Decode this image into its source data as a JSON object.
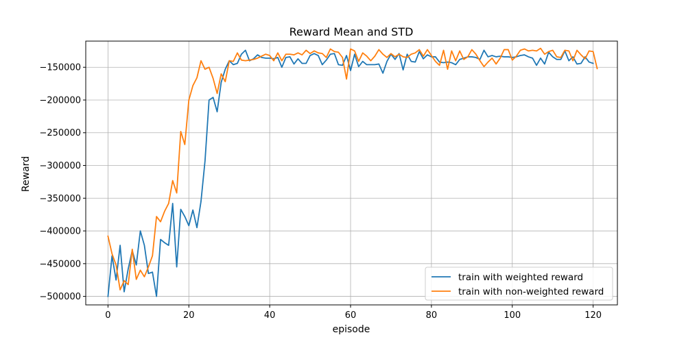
{
  "chart_data": {
    "type": "line",
    "title": "Reward Mean and STD",
    "xlabel": "episode",
    "ylabel": "Reward",
    "xlim": [
      -5.5,
      126
    ],
    "ylim": [
      -513000,
      -110000
    ],
    "xticks": [
      0,
      20,
      40,
      60,
      80,
      100,
      120
    ],
    "xtick_labels": [
      "0",
      "20",
      "40",
      "60",
      "80",
      "100",
      "120"
    ],
    "yticks": [
      -500000,
      -450000,
      -400000,
      -350000,
      -300000,
      -250000,
      -200000,
      -150000
    ],
    "ytick_labels": [
      "−500000",
      "−450000",
      "−400000",
      "−350000",
      "−300000",
      "−250000",
      "−200000",
      "−150000"
    ],
    "grid": true,
    "legend_position": "lower-right",
    "series": [
      {
        "name": "train with weighted reward",
        "color": "#1f77b4",
        "x_start": 0,
        "x_step": 1,
        "values": [
          -500000,
          -438000,
          -475000,
          -422000,
          -493000,
          -458000,
          -430000,
          -452000,
          -400000,
          -422000,
          -465000,
          -463000,
          -500000,
          -413000,
          -418000,
          -422000,
          -358000,
          -455000,
          -367000,
          -378000,
          -392000,
          -368000,
          -395000,
          -355000,
          -293000,
          -200000,
          -196000,
          -218000,
          -173000,
          -153000,
          -140000,
          -146000,
          -144000,
          -130000,
          -124000,
          -140000,
          -137000,
          -131000,
          -135000,
          -136000,
          -136000,
          -137000,
          -135000,
          -150000,
          -135000,
          -134000,
          -145000,
          -137000,
          -144000,
          -144000,
          -132000,
          -129000,
          -132000,
          -146000,
          -139000,
          -130000,
          -129000,
          -146000,
          -147000,
          -132000,
          -155000,
          -130000,
          -149000,
          -141000,
          -146000,
          -146000,
          -146000,
          -145000,
          -159000,
          -141000,
          -130000,
          -138000,
          -129000,
          -154000,
          -130000,
          -141000,
          -142000,
          -126000,
          -137000,
          -131000,
          -134000,
          -134000,
          -142000,
          -143000,
          -142000,
          -143000,
          -146000,
          -138000,
          -136000,
          -134000,
          -134000,
          -135000,
          -138000,
          -124000,
          -134000,
          -132000,
          -134000,
          -133000,
          -134000,
          -134000,
          -135000,
          -134000,
          -132000,
          -131000,
          -134000,
          -136000,
          -147000,
          -136000,
          -145000,
          -127000,
          -134000,
          -138000,
          -138000,
          -125000,
          -140000,
          -134000,
          -145000,
          -144000,
          -134000,
          -142000,
          -144000
        ]
      },
      {
        "name": "train with non-weighted reward",
        "color": "#ff7f0e",
        "x_start": 0,
        "x_step": 1,
        "values": [
          -408000,
          -435000,
          -452000,
          -490000,
          -476000,
          -482000,
          -428000,
          -474000,
          -460000,
          -470000,
          -455000,
          -438000,
          -378000,
          -386000,
          -370000,
          -358000,
          -323000,
          -342000,
          -248000,
          -268000,
          -200000,
          -178000,
          -166000,
          -140000,
          -153000,
          -150000,
          -167000,
          -190000,
          -160000,
          -172000,
          -140000,
          -141000,
          -128000,
          -139000,
          -140000,
          -139000,
          -138000,
          -136000,
          -133000,
          -130000,
          -132000,
          -140000,
          -128000,
          -140000,
          -130000,
          -130000,
          -131000,
          -128000,
          -131000,
          -124000,
          -129000,
          -125000,
          -128000,
          -129000,
          -135000,
          -122000,
          -126000,
          -127000,
          -135000,
          -168000,
          -122000,
          -125000,
          -141000,
          -128000,
          -133000,
          -140000,
          -133000,
          -123000,
          -130000,
          -135000,
          -129000,
          -134000,
          -130000,
          -134000,
          -135000,
          -130000,
          -128000,
          -123000,
          -133000,
          -123000,
          -132000,
          -141000,
          -147000,
          -124000,
          -153000,
          -125000,
          -140000,
          -125000,
          -138000,
          -134000,
          -123000,
          -130000,
          -140000,
          -149000,
          -142000,
          -136000,
          -145000,
          -136000,
          -123000,
          -123000,
          -139000,
          -133000,
          -124000,
          -122000,
          -125000,
          -124000,
          -125000,
          -121000,
          -130000,
          -126000,
          -124000,
          -134000,
          -135000,
          -124000,
          -125000,
          -140000,
          -124000,
          -131000,
          -137000,
          -125000,
          -126000,
          -152000
        ]
      }
    ]
  }
}
